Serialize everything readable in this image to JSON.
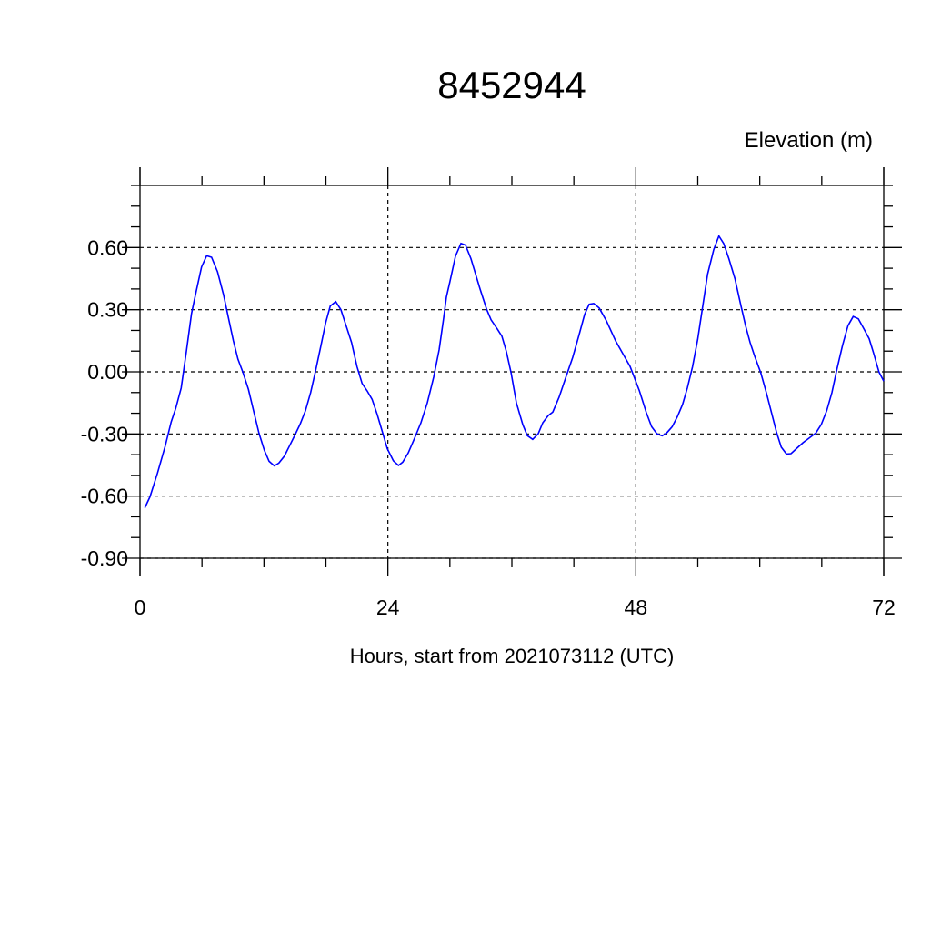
{
  "chart_data": {
    "type": "line",
    "title": "8452944",
    "ylabel": "Elevation (m)",
    "xlabel": "Hours, start from 2021073112 (UTC)",
    "xlim": [
      0,
      72
    ],
    "ylim": [
      -0.9,
      0.9
    ],
    "x_ticks": [
      0,
      24,
      48,
      72
    ],
    "x_tick_labels": [
      "0",
      "24",
      "48",
      "72"
    ],
    "y_ticks": [
      -0.9,
      -0.6,
      -0.3,
      0.0,
      0.3,
      0.6
    ],
    "y_tick_labels": [
      "-0.90",
      "-0.60",
      "-0.30",
      "0.00",
      "0.30",
      "0.60"
    ],
    "grid": true,
    "line_color": "#0000ff",
    "series": [
      {
        "x": [
          0.47,
          0.97,
          1.7,
          2.44,
          3.02,
          3.46,
          3.99,
          4.49,
          4.99,
          5.46,
          5.96,
          6.45,
          6.93,
          7.51,
          8.1,
          8.6,
          9.04,
          9.48,
          9.97,
          10.5,
          11.03,
          11.53,
          12.03,
          12.5,
          13.0,
          13.44,
          13.97,
          14.46,
          14.96,
          15.49,
          16.02,
          16.52,
          16.96,
          17.49,
          17.98,
          18.42,
          18.95,
          19.45,
          19.95,
          20.48,
          21.01,
          21.5,
          22.0,
          22.47,
          22.97,
          23.47,
          23.94,
          24.53,
          25.02,
          25.44,
          25.97,
          26.58,
          27.2,
          27.81,
          28.43,
          28.96,
          29.4,
          29.66,
          30.01,
          30.54,
          31.07,
          31.51,
          32.04,
          32.92,
          33.54,
          33.98,
          34.59,
          35.03,
          35.47,
          35.92,
          36.44,
          37.06,
          37.5,
          38.02,
          38.55,
          38.99,
          39.52,
          39.96,
          40.57,
          41.28,
          41.89,
          42.51,
          43.04,
          43.48,
          43.92,
          44.45,
          45.15,
          46.03,
          46.74,
          47.44,
          47.62,
          48.35,
          49.0,
          49.53,
          50.06,
          50.55,
          50.99,
          51.52,
          52.02,
          52.52,
          52.99,
          53.49,
          53.99,
          54.46,
          54.95,
          55.54,
          56.04,
          56.51,
          57.01,
          57.59,
          58.18,
          58.62,
          59.06,
          59.5,
          60.09,
          60.67,
          61.2,
          61.61,
          62.08,
          62.58,
          63.02,
          63.55,
          64.19,
          64.78,
          65.43,
          65.95,
          66.48,
          66.98,
          67.49,
          68.01,
          68.54,
          69.04,
          69.54,
          70.07,
          70.59,
          71.01,
          71.54,
          72.0
        ],
        "y": [
          -0.657,
          -0.603,
          -0.488,
          -0.359,
          -0.242,
          -0.177,
          -0.078,
          0.098,
          0.282,
          0.392,
          0.506,
          0.56,
          0.553,
          0.483,
          0.37,
          0.252,
          0.15,
          0.062,
          -0.004,
          -0.085,
          -0.195,
          -0.298,
          -0.378,
          -0.432,
          -0.454,
          -0.441,
          -0.408,
          -0.359,
          -0.309,
          -0.254,
          -0.188,
          -0.1,
          -0.004,
          0.12,
          0.238,
          0.318,
          0.339,
          0.3,
          0.223,
          0.142,
          0.025,
          -0.056,
          -0.092,
          -0.133,
          -0.207,
          -0.29,
          -0.371,
          -0.43,
          -0.452,
          -0.436,
          -0.392,
          -0.321,
          -0.246,
          -0.15,
          -0.026,
          0.106,
          0.26,
          0.361,
          0.436,
          0.559,
          0.62,
          0.612,
          0.546,
          0.4,
          0.304,
          0.251,
          0.207,
          0.172,
          0.097,
          -0.004,
          -0.15,
          -0.255,
          -0.308,
          -0.326,
          -0.299,
          -0.246,
          -0.211,
          -0.194,
          -0.123,
          -0.018,
          0.07,
          0.18,
          0.277,
          0.326,
          0.33,
          0.308,
          0.246,
          0.15,
          0.088,
          0.026,
          0.003,
          -0.092,
          -0.195,
          -0.265,
          -0.3,
          -0.309,
          -0.295,
          -0.265,
          -0.217,
          -0.158,
          -0.078,
          0.025,
          0.157,
          0.311,
          0.472,
          0.59,
          0.656,
          0.619,
          0.546,
          0.45,
          0.318,
          0.223,
          0.142,
          0.076,
          -0.004,
          -0.107,
          -0.21,
          -0.29,
          -0.364,
          -0.397,
          -0.395,
          -0.371,
          -0.342,
          -0.32,
          -0.295,
          -0.254,
          -0.188,
          -0.1,
          0.018,
          0.128,
          0.223,
          0.267,
          0.256,
          0.208,
          0.16,
          0.091,
          -0.001,
          -0.045
        ]
      }
    ]
  }
}
